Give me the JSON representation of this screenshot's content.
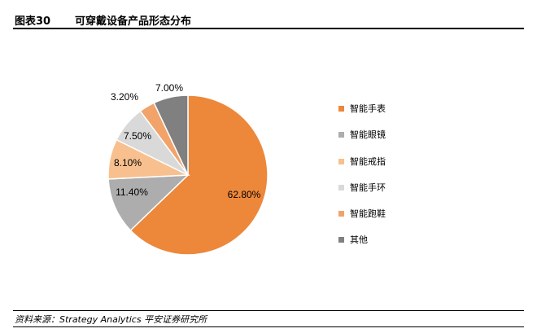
{
  "header": {
    "figure_no": "图表30",
    "title": "可穿戴设备产品形态分布"
  },
  "footer": {
    "source": "资料来源：Strategy Analytics  平安证券研究所"
  },
  "chart_data": {
    "type": "pie",
    "categories": [
      "智能手表",
      "智能眼镜",
      "智能戒指",
      "智能手环",
      "智能跑鞋",
      "其他"
    ],
    "values": [
      62.8,
      11.4,
      8.1,
      7.5,
      3.2,
      7.0
    ],
    "labels": [
      "62.80%",
      "11.40%",
      "8.10%",
      "7.50%",
      "3.20%",
      "7.00%"
    ],
    "colors": [
      "#ED873A",
      "#ADADAD",
      "#F8C08E",
      "#D9D9D9",
      "#F2A36A",
      "#808080"
    ],
    "legend_position": "right"
  }
}
